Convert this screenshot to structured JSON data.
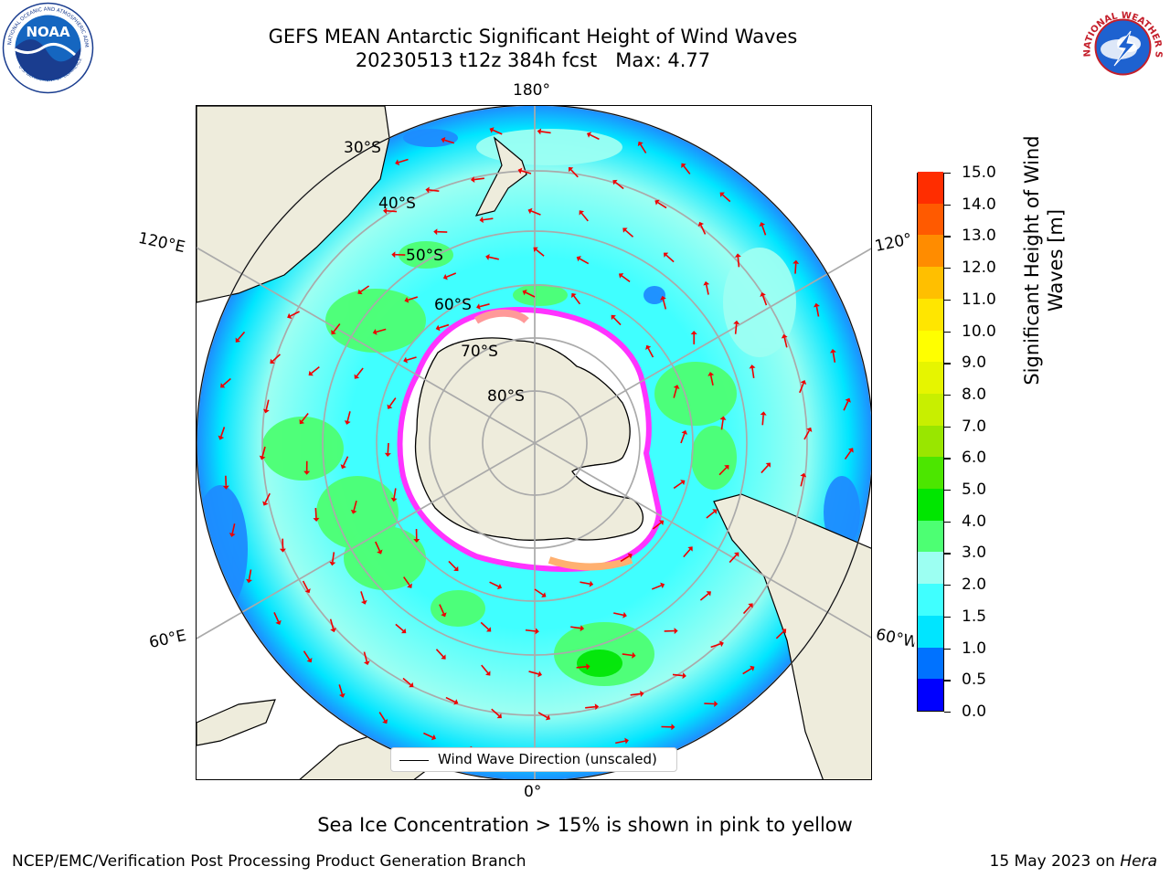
{
  "header": {
    "title_line1": "GEFS MEAN Antarctic Significant Height of Wind Waves",
    "title_line2": "20230513 t12z 384h fcst   Max: 4.77"
  },
  "logos": {
    "noaa_text": "NOAA",
    "noaa_ring_text": "NATIONAL OCEANIC AND ATMOSPHERIC ADMINISTRATION",
    "noaa_ring_text_bottom": "U.S. DEPARTMENT OF COMMERCE",
    "nws_ring_text": "NATIONAL WEATHER SERVICE"
  },
  "map": {
    "longitude_labels": {
      "top": "180°",
      "upper_left": "120°E",
      "upper_right": "120°",
      "lower_left": "60°E",
      "lower_right": "60°W",
      "bottom": "0°"
    },
    "latitude_labels": [
      "30°S",
      "40°S",
      "50°S",
      "60°S",
      "70°S",
      "80°S"
    ],
    "legend": "Wind Wave Direction (unscaled)",
    "colors": {
      "land": "#eeecdc",
      "coast": "#000000",
      "grid": "#aaaaaa",
      "arrows": "#ee0000",
      "ice_edge": "#ff33ff"
    }
  },
  "colorbar": {
    "title": "Significant Height of Wind Waves [m]",
    "title_line1": "Significant Height of Wind",
    "title_line2": "Waves [m]",
    "ticks": [
      "0.0",
      "0.5",
      "1.0",
      "1.5",
      "2.0",
      "3.0",
      "4.0",
      "5.0",
      "6.0",
      "7.0",
      "8.0",
      "9.0",
      "10.0",
      "11.0",
      "12.0",
      "13.0",
      "14.0",
      "15.0"
    ],
    "colors": [
      "#0000ff",
      "#0072ff",
      "#00e5ff",
      "#40ffff",
      "#9cfff2",
      "#4dff73",
      "#00e600",
      "#4ce600",
      "#99e600",
      "#c8ef00",
      "#e6f500",
      "#ffff00",
      "#ffe600",
      "#ffbf00",
      "#ff8c00",
      "#ff5a00",
      "#ff2d00"
    ]
  },
  "note": "Sea Ice Concentration > 15% is shown in pink to yellow",
  "footer": {
    "left": "NCEP/EMC/Verification Post Processing Product Generation Branch",
    "right_prefix": "15 May 2023 on ",
    "right_host": "Hera"
  }
}
